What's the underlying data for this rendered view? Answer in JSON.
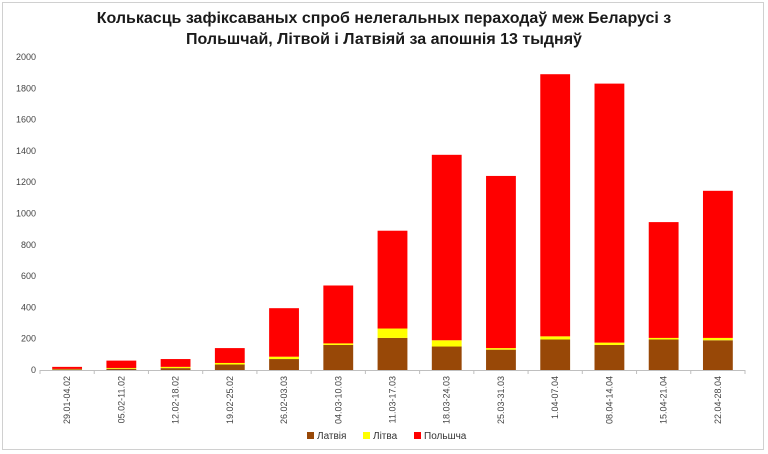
{
  "chart_data": {
    "type": "bar",
    "stacked": true,
    "title_line1": "Колькасць зафіксаваных спроб нелегальных пераходаў меж Беларусі з",
    "title_line2": "Польшчай, Літвой і Латвіяй за апошнія 13 тыдняў",
    "categories": [
      "29.01-04.02",
      "05.02-11.02",
      "12.02-18.02",
      "19.02-25.02",
      "26.02-03.03",
      "04.03-10.03",
      "11.03-17.03",
      "18.03-24.03",
      "25.03-31.03",
      "1.04-07.04",
      "08.04-14.04",
      "15.04-21.04",
      "22.04-28.04"
    ],
    "series": [
      {
        "name": "Латвія",
        "color": "#984807",
        "values": [
          5,
          8,
          12,
          35,
          70,
          160,
          205,
          150,
          130,
          195,
          160,
          195,
          190
        ]
      },
      {
        "name": "Літва",
        "color": "#ffff00",
        "values": [
          2,
          5,
          8,
          10,
          15,
          10,
          60,
          40,
          10,
          20,
          15,
          10,
          15
        ]
      },
      {
        "name": "Польшча",
        "color": "#ff0000",
        "values": [
          13,
          47,
          50,
          95,
          310,
          370,
          625,
          1185,
          1100,
          1675,
          1655,
          740,
          940
        ]
      }
    ],
    "ylim": [
      0,
      2000
    ],
    "yticks": [
      0,
      200,
      400,
      600,
      800,
      1000,
      1200,
      1400,
      1600,
      1800,
      2000
    ],
    "grid": false,
    "legend_position": "bottom"
  }
}
